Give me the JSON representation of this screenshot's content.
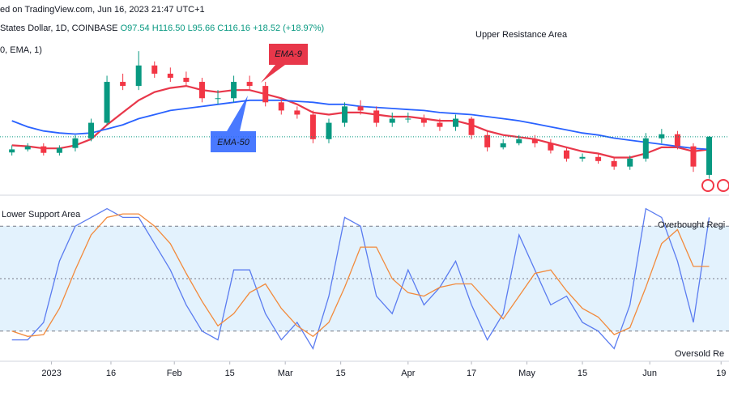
{
  "header": [
    "ed on TradingView.com, Jun 16, 2023 21:47 UTC+1",
    "States Dollar, 1D, COINBASE",
    "O97.54",
    "H116.50",
    "L95.66",
    "C116.16",
    "+18.52 (+18.97%)",
    "0, EMA, 1)"
  ],
  "chart_data": [
    {
      "type": "candlestick",
      "x": [
        "2022-12-22",
        "2022-12-26",
        "2022-12-30",
        "2023-01-03",
        "2023-01-07",
        "2023-01-11",
        "2023-01-15",
        "2023-01-19",
        "2023-01-23",
        "2023-01-27",
        "2023-01-31",
        "2023-02-04",
        "2023-02-08",
        "2023-02-12",
        "2023-02-16",
        "2023-02-20",
        "2023-02-24",
        "2023-02-28",
        "2023-03-04",
        "2023-03-08",
        "2023-03-12",
        "2023-03-16",
        "2023-03-20",
        "2023-03-24",
        "2023-03-28",
        "2023-04-01",
        "2023-04-05",
        "2023-04-09",
        "2023-04-13",
        "2023-04-17",
        "2023-04-21",
        "2023-04-25",
        "2023-04-29",
        "2023-05-03",
        "2023-05-07",
        "2023-05-11",
        "2023-05-15",
        "2023-05-19",
        "2023-05-23",
        "2023-05-27",
        "2023-05-31",
        "2023-06-04",
        "2023-06-08",
        "2023-06-12",
        "2023-06-16"
      ],
      "open": [
        108.5,
        110,
        111.5,
        108.3,
        110.7,
        115.4,
        123,
        143,
        141,
        151,
        147,
        145,
        143,
        135,
        135,
        143,
        141,
        133,
        129,
        127,
        115,
        123,
        131,
        129,
        123,
        125,
        125,
        123,
        121,
        125,
        117,
        111,
        113,
        115,
        113,
        109.5,
        105.5,
        106.3,
        104.3,
        101.6,
        105.5,
        115.4,
        117.4,
        111.5,
        97.54
      ],
      "high": [
        112,
        113,
        113,
        112,
        117,
        125,
        146,
        147,
        158,
        153,
        150,
        148,
        145,
        139,
        146,
        146,
        143,
        135,
        131,
        129,
        125,
        133,
        134,
        131,
        128,
        128,
        127,
        125,
        127,
        126,
        119,
        115,
        117,
        117,
        115,
        111,
        108,
        108,
        106,
        107,
        118,
        120,
        119,
        113,
        116.5
      ],
      "low": [
        107,
        109,
        107,
        107,
        109,
        114,
        122,
        139,
        139,
        145,
        143,
        141,
        133,
        132,
        133,
        139,
        131,
        127,
        125,
        113,
        113,
        121,
        127,
        121,
        121,
        123,
        121,
        119,
        119,
        115,
        109,
        110,
        112,
        111,
        108,
        104,
        104,
        103,
        100,
        100,
        104,
        113,
        110,
        99,
        95.66
      ],
      "close": [
        110,
        111.5,
        108.3,
        110.7,
        115.4,
        123,
        143,
        141,
        151,
        147,
        145,
        143,
        135,
        135,
        143,
        141,
        133,
        129,
        127,
        115,
        123,
        131,
        129,
        123,
        125,
        125,
        123,
        121,
        125,
        117,
        111,
        113,
        115,
        113,
        109.5,
        105.5,
        106.3,
        104.3,
        101.6,
        105.5,
        115.4,
        117.4,
        111.5,
        101.6,
        116.16
      ],
      "up_color": "#089981",
      "down_color": "#f23645",
      "series": [
        {
          "name": "EMA-9",
          "color": "#e8374a",
          "values": [
            112,
            111.5,
            110.5,
            110.5,
            112,
            115,
            122,
            128,
            134,
            138,
            140,
            141,
            139,
            138,
            139,
            139,
            137,
            135,
            132,
            128,
            127,
            128,
            128,
            127,
            126,
            126,
            125,
            124,
            124,
            122,
            119,
            117,
            116,
            115,
            113,
            111,
            109,
            108,
            106,
            106,
            108,
            111,
            111,
            109,
            110
          ]
        },
        {
          "name": "EMA-50",
          "color": "#2962ff",
          "values": [
            124,
            121,
            119,
            118,
            117.5,
            118,
            120,
            122,
            125,
            127,
            129,
            130,
            131,
            132,
            133,
            134,
            134,
            134,
            133.5,
            133,
            132,
            132,
            131,
            130.5,
            130,
            129.5,
            129,
            128,
            127.5,
            127,
            126,
            125,
            124,
            122.5,
            121,
            119.5,
            118,
            117,
            115.5,
            114.5,
            113.5,
            112.5,
            111.5,
            110.5,
            110
          ]
        }
      ],
      "xlim": [
        "2022-12-19",
        "2023-06-21"
      ],
      "ylim": [
        88,
        183
      ],
      "annotations": [
        "Upper Resistance Area",
        "EMA-9",
        "EMA-50"
      ]
    },
    {
      "type": "line",
      "x": [
        "2022-12-22",
        "2022-12-26",
        "2022-12-30",
        "2023-01-03",
        "2023-01-07",
        "2023-01-11",
        "2023-01-15",
        "2023-01-19",
        "2023-01-23",
        "2023-01-27",
        "2023-01-31",
        "2023-02-04",
        "2023-02-08",
        "2023-02-12",
        "2023-02-16",
        "2023-02-20",
        "2023-02-24",
        "2023-02-28",
        "2023-03-04",
        "2023-03-08",
        "2023-03-12",
        "2023-03-16",
        "2023-03-20",
        "2023-03-24",
        "2023-03-28",
        "2023-04-01",
        "2023-04-05",
        "2023-04-09",
        "2023-04-13",
        "2023-04-17",
        "2023-04-21",
        "2023-04-25",
        "2023-04-29",
        "2023-05-03",
        "2023-05-07",
        "2023-05-11",
        "2023-05-15",
        "2023-05-19",
        "2023-05-23",
        "2023-05-27",
        "2023-05-31",
        "2023-06-04",
        "2023-06-08",
        "2023-06-12",
        "2023-06-16"
      ],
      "series": [
        {
          "name": "%K",
          "color": "#5b7cf0",
          "values": [
            15,
            15,
            25,
            60,
            80,
            85,
            90,
            85,
            85,
            70,
            55,
            35,
            20,
            15,
            55,
            55,
            30,
            15,
            25,
            10,
            40,
            85,
            80,
            40,
            30,
            55,
            35,
            45,
            60,
            35,
            15,
            30,
            75,
            55,
            35,
            40,
            25,
            20,
            10,
            35,
            90,
            85,
            60,
            25,
            85
          ]
        },
        {
          "name": "%D",
          "color": "#f28a3c",
          "values": [
            20,
            17,
            18,
            33,
            55,
            75,
            85,
            87,
            87,
            80,
            70,
            53,
            37,
            23,
            30,
            42,
            47,
            33,
            23,
            17,
            25,
            45,
            68,
            68,
            50,
            42,
            40,
            45,
            47,
            47,
            37,
            27,
            40,
            53,
            55,
            43,
            33,
            28,
            18,
            22,
            45,
            70,
            78,
            57,
            57
          ]
        }
      ],
      "xlim": [
        "2022-12-19",
        "2023-06-21"
      ],
      "ylim": [
        0,
        100
      ],
      "levels": [
        20,
        50,
        80
      ],
      "band_color": "#e3f2fd",
      "xticks": [
        {
          "value": "2023-01-01",
          "label": "2023"
        },
        {
          "value": "2023-01-16",
          "label": "16"
        },
        {
          "value": "2023-02-01",
          "label": "Feb"
        },
        {
          "value": "2023-02-15",
          "label": "15"
        },
        {
          "value": "2023-03-01",
          "label": "Mar"
        },
        {
          "value": "2023-03-15",
          "label": "15"
        },
        {
          "value": "2023-04-01",
          "label": "Apr"
        },
        {
          "value": "2023-04-17",
          "label": "17"
        },
        {
          "value": "2023-05-01",
          "label": "May"
        },
        {
          "value": "2023-05-15",
          "label": "15"
        },
        {
          "value": "2023-06-01",
          "label": "Jun"
        },
        {
          "value": "2023-06-19",
          "label": "19"
        }
      ],
      "annotations": [
        "Lower Support Area",
        "Overbought Regi",
        "Oversold Re"
      ]
    }
  ]
}
